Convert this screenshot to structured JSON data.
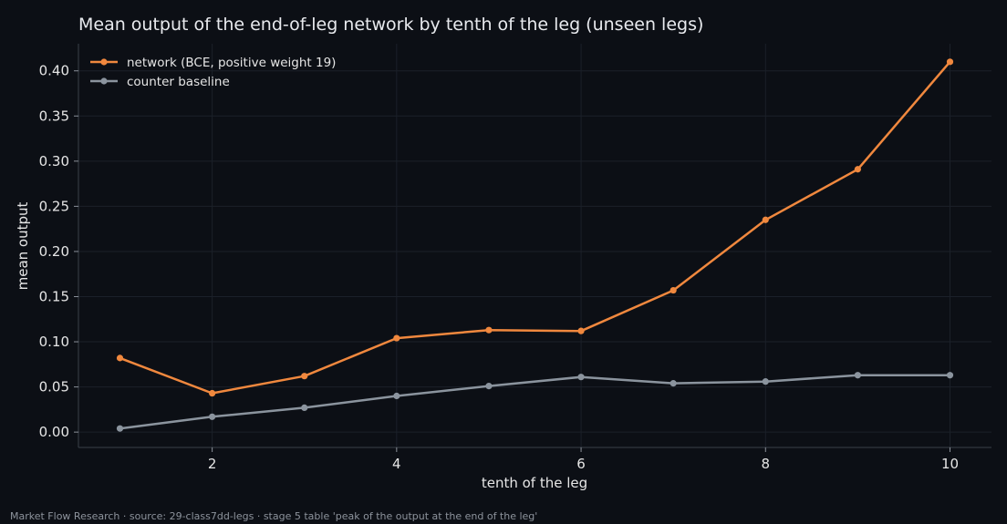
{
  "chart_data": {
    "type": "line",
    "title": "Mean output of the end-of-leg network by tenth of the leg (unseen legs)",
    "xlabel": "tenth of the leg",
    "ylabel": "mean output",
    "x": [
      1,
      2,
      3,
      4,
      5,
      6,
      7,
      8,
      9,
      10
    ],
    "xlim": [
      0.55,
      10.45
    ],
    "ylim": [
      -0.017,
      0.43
    ],
    "xticks": [
      2,
      4,
      6,
      8,
      10
    ],
    "yticks": [
      0.0,
      0.05,
      0.1,
      0.15,
      0.2,
      0.25,
      0.3,
      0.35,
      0.4
    ],
    "grid": true,
    "legend_position": "top-left",
    "series": [
      {
        "name": "network (BCE, positive weight 19)",
        "color": "#f0883e",
        "values": [
          0.082,
          0.043,
          0.062,
          0.104,
          0.113,
          0.112,
          0.157,
          0.235,
          0.291,
          0.41
        ]
      },
      {
        "name": "counter baseline",
        "color": "#8b949e",
        "values": [
          0.004,
          0.017,
          0.027,
          0.04,
          0.051,
          0.061,
          0.054,
          0.056,
          0.063,
          0.063
        ]
      }
    ]
  },
  "footer": "Market Flow Research · source: 29-class7dd-legs · stage 5 table 'peak of the output at the end of the leg'"
}
